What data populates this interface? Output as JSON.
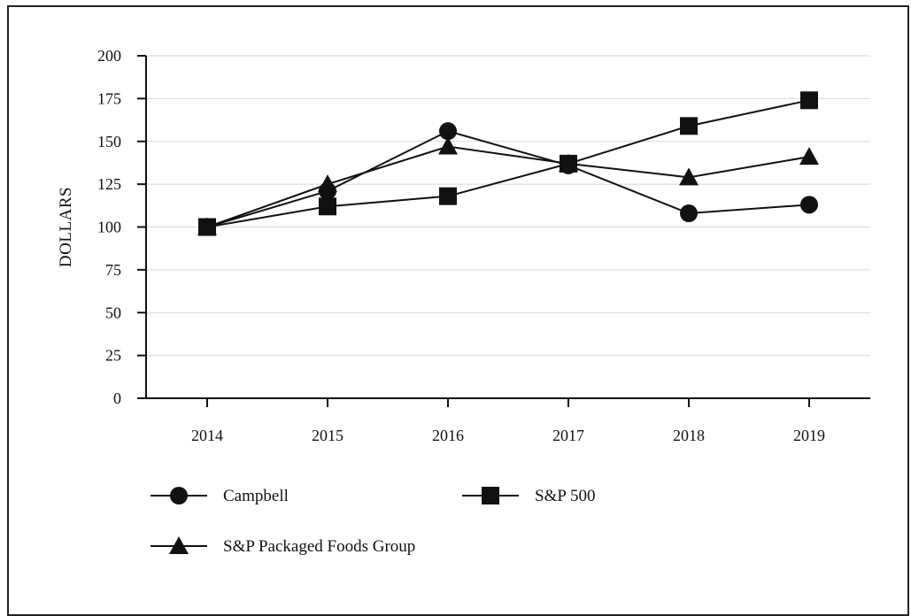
{
  "chart_data": {
    "type": "line",
    "title": "",
    "xlabel": "",
    "ylabel": "DOLLARS",
    "ylim": [
      0,
      200
    ],
    "yticks": [
      "0",
      "25",
      "50",
      "75",
      "100",
      "125",
      "150",
      "175",
      "200"
    ],
    "x": [
      "2014",
      "2015",
      "2016",
      "2017",
      "2018",
      "2019"
    ],
    "grid": true,
    "legend_position": "bottom-left",
    "series": [
      {
        "name": "Campbell",
        "marker": "circle",
        "values": [
          100,
          121,
          156,
          136,
          108,
          113
        ]
      },
      {
        "name": "S&P 500",
        "marker": "square",
        "values": [
          100,
          112,
          118,
          137,
          159,
          174
        ]
      },
      {
        "name": "S&P Packaged Foods Group",
        "marker": "triangle",
        "values": [
          100,
          125,
          147,
          137,
          129,
          141
        ]
      }
    ],
    "colors": {
      "line": "#111111",
      "grid": "#d8d8d8",
      "axis": "#111111"
    }
  }
}
